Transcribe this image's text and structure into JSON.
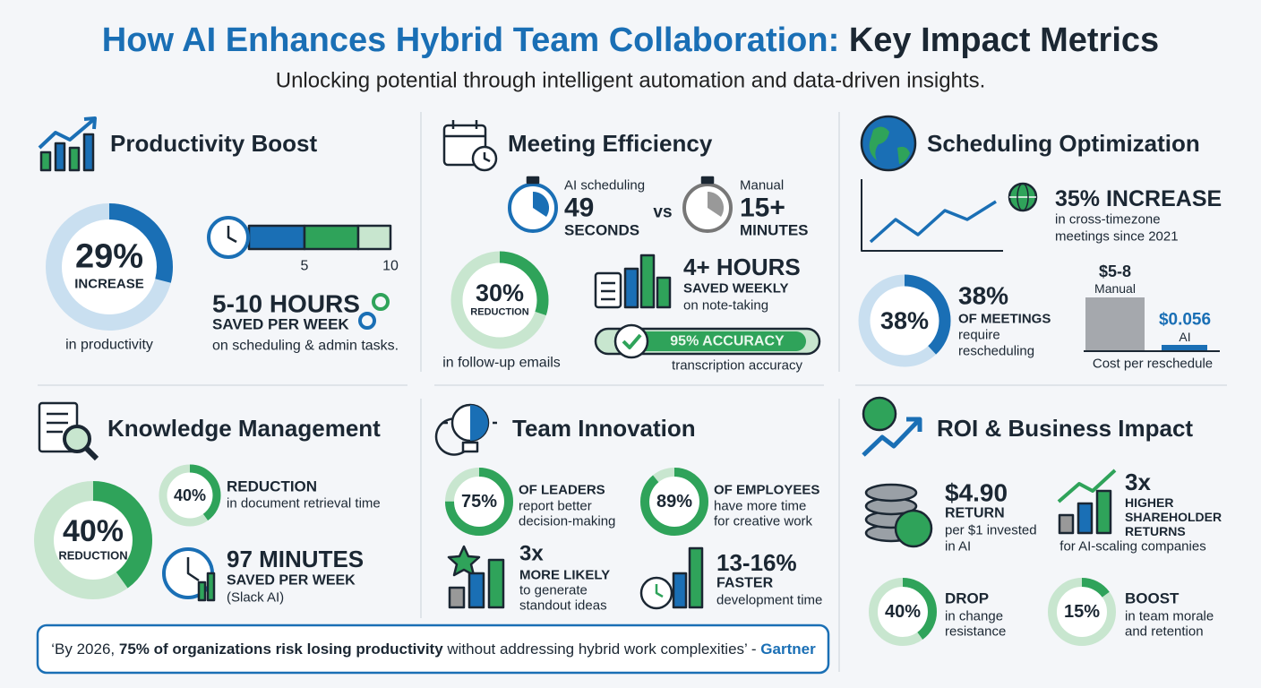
{
  "header": {
    "title": {
      "blue": "How AI Enhances Hybrid Team Collaboration:",
      "dark": "Key Impact Metrics"
    },
    "subtitle": "Unlocking potential through intelligent automation and data-driven insights."
  },
  "productivity": {
    "title": "Productivity Boost",
    "ring": {
      "value": 29,
      "label": "29%"
    },
    "ring_caption": "INCREASE",
    "ring_note": "in productivity",
    "scale": [
      "5",
      "10"
    ],
    "hours": "5-10 HOURS",
    "hours_sub": "SAVED PER WEEK",
    "hours_note": "on scheduling & admin tasks."
  },
  "meeting": {
    "title": "Meeting Efficiency",
    "ai": {
      "label": "AI scheduling",
      "value": "49",
      "unit": "SECONDS"
    },
    "vs": "vs",
    "manual": {
      "label": "Manual",
      "value": "15+",
      "unit": "MINUTES"
    },
    "ring": {
      "value": 30,
      "label": "30%"
    },
    "ring_caption": "REDUCTION",
    "ring_note": "in follow-up emails",
    "notes": {
      "value": "4+ HOURS",
      "sub": "SAVED WEEKLY",
      "note": "on note-taking"
    },
    "accuracy": {
      "label": "95% ACCURACY",
      "note": "transcription accuracy"
    }
  },
  "scheduling": {
    "title": "Scheduling Optimization",
    "increase": {
      "value": "35% INCREASE",
      "lines": [
        "in cross-timezone",
        "meetings since 2021"
      ]
    },
    "ring": {
      "value": 38,
      "label": "38%"
    },
    "meetings": {
      "value": "38%",
      "sub": "OF MEETINGS",
      "lines": [
        "require",
        "rescheduling"
      ]
    },
    "cost": {
      "manual": {
        "value": "$5-8",
        "label": "Manual"
      },
      "ai": {
        "value": "$0.056",
        "label": "AI"
      },
      "caption": "Cost per reschedule"
    }
  },
  "knowledge": {
    "title": "Knowledge Management",
    "ring": {
      "value": 40,
      "label": "40%"
    },
    "ring_caption": "REDUCTION",
    "retrieval": {
      "ring": {
        "value": 40,
        "label": "40%"
      },
      "sub": "REDUCTION",
      "note": "in document retrieval time"
    },
    "minutes": {
      "value": "97 MINUTES",
      "sub": "SAVED PER WEEK",
      "note": "(Slack AI)"
    }
  },
  "innovation": {
    "title": "Team Innovation",
    "leaders": {
      "ring": {
        "value": 75,
        "label": "75%"
      },
      "sub": "OF LEADERS",
      "lines": [
        "report better",
        "decision-making"
      ]
    },
    "employees": {
      "ring": {
        "value": 89,
        "label": "89%"
      },
      "sub": "OF EMPLOYEES",
      "lines": [
        "have more time",
        "for creative work"
      ]
    },
    "ideas": {
      "value": "3x",
      "sub": "MORE LIKELY",
      "lines": [
        "to generate",
        "standout ideas"
      ]
    },
    "faster": {
      "value": "13-16%",
      "sub": "FASTER",
      "note": "development time"
    }
  },
  "roi": {
    "title": "ROI & Business Impact",
    "return": {
      "value": "$4.90",
      "sub": "RETURN",
      "lines": [
        "per $1 invested",
        "in AI"
      ]
    },
    "shareholder": {
      "value": "3x",
      "lines": [
        "HIGHER",
        "SHAREHOLDER",
        "RETURNS"
      ],
      "note": "for AI-scaling companies"
    },
    "drop": {
      "ring": {
        "value": 40,
        "label": "40%"
      },
      "sub": "DROP",
      "lines": [
        "in change",
        "resistance"
      ]
    },
    "boost": {
      "ring": {
        "value": 15,
        "label": "15%"
      },
      "sub": "BOOST",
      "lines": [
        "in team morale",
        "and retention"
      ]
    }
  },
  "quote": {
    "open": "‘By 2026, ",
    "bold": "75% of organizations risk losing productivity",
    "rest": " without addressing hybrid work complexities’ - ",
    "source": "Gartner"
  }
}
